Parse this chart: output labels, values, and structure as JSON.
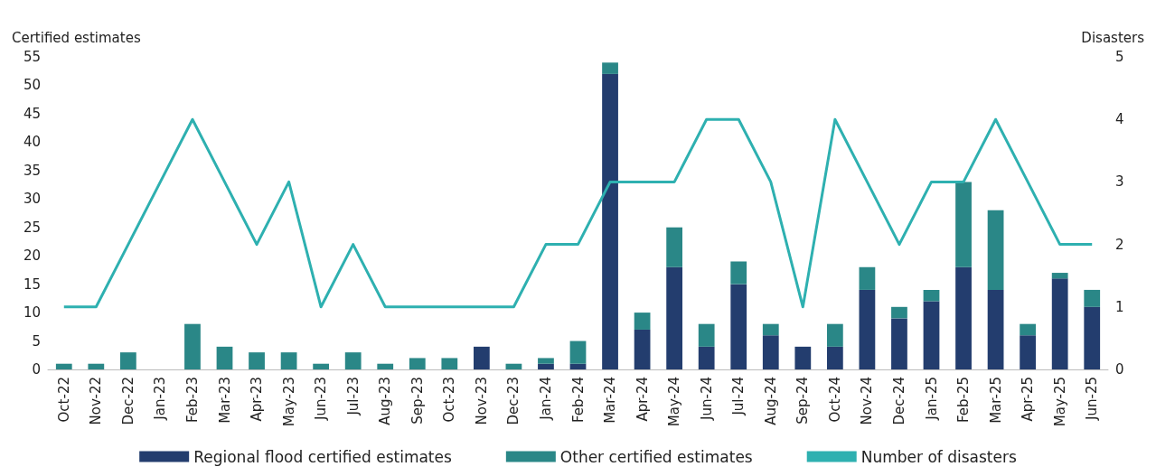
{
  "chart_data": {
    "type": "bar",
    "stacked": true,
    "ylabel": "Certified estimates",
    "y2label": "Disasters",
    "categories": [
      "Oct-22",
      "Nov-22",
      "Dec-22",
      "Jan-23",
      "Feb-23",
      "Mar-23",
      "Apr-23",
      "May-23",
      "Jun-23",
      "Jul-23",
      "Aug-23",
      "Sep-23",
      "Oct-23",
      "Nov-23",
      "Dec-23",
      "Jan-24",
      "Feb-24",
      "Mar-24",
      "Apr-24",
      "May-24",
      "Jun-24",
      "Jul-24",
      "Aug-24",
      "Sep-24",
      "Oct-24",
      "Nov-24",
      "Dec-24",
      "Jan-25",
      "Feb-25",
      "Mar-25",
      "Apr-25",
      "May-25",
      "Jun-25"
    ],
    "series": [
      {
        "name": "Regional flood certified estimates",
        "color": "#233d6e",
        "values": [
          0,
          0,
          0,
          0,
          0,
          0,
          0,
          0,
          0,
          0,
          0,
          0,
          0,
          4,
          0,
          1,
          1,
          52,
          7,
          18,
          4,
          15,
          6,
          4,
          4,
          14,
          9,
          12,
          18,
          14,
          6,
          16,
          11
        ]
      },
      {
        "name": "Other certified estimates",
        "color": "#2a8787",
        "values": [
          1,
          1,
          3,
          0,
          8,
          4,
          3,
          3,
          1,
          3,
          1,
          2,
          2,
          0,
          1,
          1,
          4,
          2,
          3,
          7,
          4,
          4,
          2,
          0,
          4,
          4,
          2,
          2,
          15,
          14,
          2,
          1,
          3
        ]
      },
      {
        "name": "Number of disasters",
        "type": "line",
        "axis": "y2",
        "color": "#2eb0b0",
        "values": [
          1,
          1,
          2,
          3,
          4,
          3,
          2,
          3,
          1,
          2,
          1,
          1,
          1,
          1,
          1,
          2,
          2,
          3,
          3,
          3,
          4,
          4,
          3,
          1,
          4,
          3,
          2,
          3,
          3,
          4,
          3,
          2,
          2
        ]
      }
    ],
    "ylim": [
      0,
      55
    ],
    "yticks": [
      0,
      5,
      10,
      15,
      20,
      25,
      30,
      35,
      40,
      45,
      50,
      55
    ],
    "y2lim": [
      0,
      5
    ],
    "y2ticks": [
      0,
      1,
      2,
      3,
      4,
      5
    ],
    "grid": false,
    "legend": "bottom",
    "marker": "none",
    "line_style": "solid"
  }
}
